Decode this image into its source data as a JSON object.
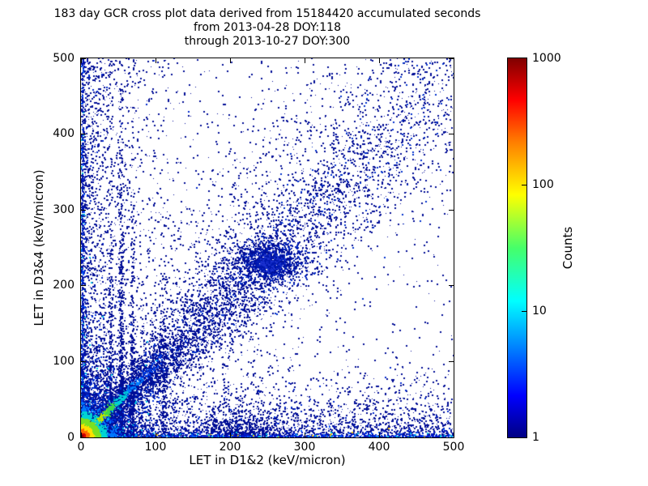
{
  "chart_data": {
    "type": "scatter",
    "subtype": "density-histogram-2d",
    "title": {
      "line1": "183 day GCR cross plot data derived from 15184420 accumulated seconds",
      "line2": "from 2013-04-28 DOY:118",
      "line3": "through 2013-10-27 DOY:300"
    },
    "xlabel": "LET in D1&2 (keV/micron)",
    "ylabel": "LET in D3&4 (keV/micron)",
    "xlim": [
      0,
      500
    ],
    "ylim": [
      0,
      500
    ],
    "x_ticks": [
      0,
      100,
      200,
      300,
      400,
      500
    ],
    "y_ticks": [
      0,
      100,
      200,
      300,
      400,
      500
    ],
    "grid": false,
    "legend": "none",
    "colorbar": {
      "label": "Counts",
      "scale": "log",
      "min": 1,
      "max": 1000,
      "ticks": [
        1,
        10,
        100,
        1000
      ],
      "colormap": "jet",
      "gradient": [
        [
          "0%",
          "#000083"
        ],
        [
          "11%",
          "#0000ff"
        ],
        [
          "36%",
          "#00ffff"
        ],
        [
          "50%",
          "#46ff69"
        ],
        [
          "64%",
          "#ffff00"
        ],
        [
          "78%",
          "#ff7d00"
        ],
        [
          "89%",
          "#ff0000"
        ],
        [
          "100%",
          "#800000"
        ]
      ]
    },
    "features": [
      "intense red/orange/yellow hotspot at origin (LET < ~20 keV/micron both detectors)",
      "bright yellow-to-green-to-cyan diagonal coincidence streak from origin to ~(90,90)",
      "broad dark-blue diagonal correlation band extending to (500,500)",
      "dense blue cluster on the band near (250,230)",
      "dense count bands hugging both axes across the full range, brightest at the axes",
      "vertical enhancement stripes near x=39, 52, 68 and 110",
      "density bump on the x-axis band near x=210",
      "sparse navy single counts scattered over the whole plane"
    ],
    "render": {
      "seed": 1337,
      "base_point_color": "#000d96",
      "components": [
        {
          "name": "sparse-uniform",
          "kind": "xy",
          "count": 700,
          "x": {
            "type": "uniform",
            "min": 0,
            "max": 500
          },
          "y": {
            "type": "uniform",
            "min": 0,
            "max": 500
          },
          "color": "#000d96"
        },
        {
          "name": "left-wedge-upper",
          "kind": "xy",
          "count": 900,
          "x": {
            "type": "exp",
            "scale": 70
          },
          "y": {
            "type": "uniform",
            "min": 0,
            "max": 500
          },
          "color": "#000d96"
        },
        {
          "name": "left-field",
          "kind": "xy",
          "count": 1500,
          "x": {
            "type": "exp",
            "scale": 30
          },
          "y": {
            "type": "pow",
            "max": 500,
            "gamma": 1.5
          },
          "color": {
            "type": "mix",
            "stops": [
              [
                0.05,
                "#0028cc"
              ],
              [
                1,
                "#000d96"
              ]
            ]
          }
        },
        {
          "name": "bottom-field",
          "kind": "xy",
          "count": 2400,
          "x": {
            "type": "uniform",
            "min": 0,
            "max": 500
          },
          "y": {
            "type": "exp",
            "scale": 30
          },
          "color": {
            "type": "mix",
            "stops": [
              [
                0.06,
                "#0028cc"
              ],
              [
                1,
                "#000d96"
              ]
            ]
          }
        },
        {
          "name": "upper-cloud",
          "kind": "diag",
          "count": 1600,
          "t": {
            "type": "pow",
            "max": 420,
            "gamma": 1.4
          },
          "slope": 1.25,
          "slopeSd": 0.25,
          "xJitter": 6,
          "spread0": 15,
          "spreadGrow": 0.15,
          "color": "#000d96"
        },
        {
          "name": "lower-secondary-band",
          "kind": "diag",
          "count": 500,
          "t": {
            "type": "pow",
            "max": 260,
            "gamma": 1.5
          },
          "slope": 0.72,
          "slopeSd": 0.08,
          "xJitter": 4,
          "spread0": 6,
          "spreadGrow": 0.08,
          "color": "#000d96"
        },
        {
          "name": "diagonal-band",
          "kind": "diag",
          "count": 5200,
          "t": {
            "type": "pow",
            "max": 500,
            "gamma": 1.7
          },
          "slope": 0.94,
          "slopeSd": 0.1,
          "xJitter": 3,
          "spread0": 5,
          "spreadGrow": 0.1,
          "color": {
            "type": "mix",
            "stops": [
              [
                0.12,
                "#0030cc"
              ],
              [
                1,
                "#000d96"
              ]
            ]
          }
        },
        {
          "name": "stripe-39",
          "kind": "xy",
          "count": 240,
          "x": {
            "type": "normal",
            "mean": 39,
            "sd": 1.4
          },
          "y": {
            "type": "exp",
            "scale": 110
          },
          "color": "#000d96"
        },
        {
          "name": "stripe-52",
          "kind": "xy",
          "count": 420,
          "x": {
            "type": "normal",
            "mean": 53,
            "sd": 1.5
          },
          "y": {
            "type": "exp",
            "scale": 140
          },
          "color": "#000d96"
        },
        {
          "name": "stripe-68",
          "kind": "xy",
          "count": 300,
          "x": {
            "type": "normal",
            "mean": 68,
            "sd": 1.5
          },
          "y": {
            "type": "exp",
            "scale": 120
          },
          "color": "#000d96"
        },
        {
          "name": "stripe-110",
          "kind": "xy",
          "count": 170,
          "x": {
            "type": "normal",
            "mean": 110,
            "sd": 2.2
          },
          "y": {
            "type": "exp",
            "scale": 80
          },
          "color": "#000d96"
        },
        {
          "name": "bottom-bump",
          "kind": "xy",
          "count": 520,
          "x": {
            "type": "normal",
            "mean": 212,
            "sd": 26
          },
          "y": {
            "type": "exp",
            "scale": 13
          },
          "color": "#000d96"
        },
        {
          "name": "band-cluster",
          "kind": "cluster",
          "count": 1150,
          "cx": 252,
          "cy": 231,
          "sx": 24,
          "sy": 16,
          "color": {
            "type": "mix",
            "stops": [
              [
                0.35,
                "#0022bb"
              ],
              [
                1,
                "#000d96"
              ]
            ]
          }
        },
        {
          "name": "band-cluster-core",
          "kind": "cluster",
          "count": 420,
          "cx": 250,
          "cy": 229,
          "sx": 10,
          "sy": 7,
          "color": {
            "type": "mix",
            "stops": [
              [
                0.5,
                "#1a30cf"
              ],
              [
                1,
                "#0018b0"
              ]
            ]
          }
        },
        {
          "name": "left-edge",
          "kind": "xy",
          "count": 800,
          "x": {
            "type": "exp",
            "scale": 1.8
          },
          "y": {
            "type": "pow",
            "max": 500,
            "gamma": 1.6
          },
          "color": {
            "type": "mix",
            "stops": [
              [
                0.15,
                "#0055ff"
              ],
              [
                0.24,
                "#00c0e0"
              ],
              [
                1,
                "#0015b4"
              ]
            ]
          }
        },
        {
          "name": "bottom-edge",
          "kind": "xy",
          "count": 900,
          "x": {
            "type": "uniform",
            "min": 0,
            "max": 500
          },
          "y": {
            "type": "exp",
            "scale": 2
          },
          "color": {
            "type": "mix",
            "stops": [
              [
                0.2,
                "#0055ff"
              ],
              [
                0.32,
                "#00c0e0"
              ],
              [
                0.36,
                "#ffd000"
              ],
              [
                1,
                "#0018c8"
              ]
            ]
          }
        },
        {
          "name": "origin-halo",
          "kind": "xy",
          "count": 2300,
          "x": {
            "type": "exp",
            "scale": 30
          },
          "y": {
            "type": "exp",
            "scale": 30
          },
          "color": {
            "type": "mix",
            "stops": [
              [
                0.07,
                "#00c8e8"
              ],
              [
                0.35,
                "#0033dd"
              ],
              [
                1,
                "#000f9e"
              ]
            ]
          }
        },
        {
          "name": "diagonal-streak",
          "kind": "diag",
          "count": 950,
          "t": {
            "type": "exp",
            "scale": 30,
            "max": 110
          },
          "slope": 0.97,
          "slopeSd": 0.015,
          "xJitter": 1.6,
          "spread0": 1.6,
          "spreadGrow": 0.02,
          "color": {
            "type": "t-ramp",
            "stops": [
              [
                10,
                "#ff7700"
              ],
              [
                20,
                "#ffd900"
              ],
              [
                32,
                "#b8e800"
              ],
              [
                45,
                "#3fd94a"
              ],
              [
                60,
                "#00cfd9"
              ],
              [
                80,
                "#0080ff"
              ],
              [
                9999,
                "#0040e8"
              ]
            ]
          }
        },
        {
          "name": "origin-core",
          "kind": "xy",
          "count": 2600,
          "x": {
            "type": "exp",
            "scale": 9
          },
          "y": {
            "type": "exp",
            "scale": 9
          },
          "color": {
            "type": "radial-ramp",
            "stops": [
              [
                3,
                "#7f0000"
              ],
              [
                6,
                "#d40000"
              ],
              [
                11,
                "#ff6a00"
              ],
              [
                17,
                "#ffe000"
              ],
              [
                25,
                "#7be021"
              ],
              [
                35,
                "#00d4d4"
              ],
              [
                48,
                "#0077ff"
              ],
              [
                70,
                "#0033dd"
              ],
              [
                9999,
                "#0011bb"
              ]
            ]
          }
        }
      ]
    }
  }
}
